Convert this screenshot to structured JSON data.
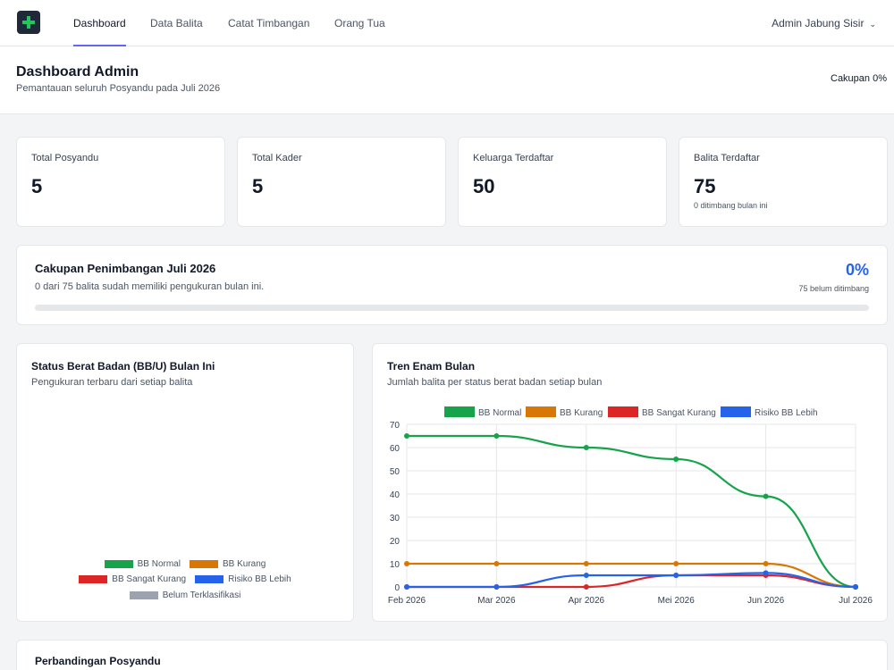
{
  "nav": {
    "items": [
      {
        "label": "Dashboard",
        "active": true
      },
      {
        "label": "Data Balita",
        "active": false
      },
      {
        "label": "Catat Timbangan",
        "active": false
      },
      {
        "label": "Orang Tua",
        "active": false
      }
    ],
    "user": "Admin Jabung Sisir",
    "logo_icon": "plus-icon"
  },
  "header": {
    "title": "Dashboard Admin",
    "subtitle": "Pemantauan seluruh Posyandu pada Juli 2026",
    "coverage": "Cakupan 0%"
  },
  "stats": [
    {
      "label": "Total Posyandu",
      "value": "5",
      "note": ""
    },
    {
      "label": "Total Kader",
      "value": "5",
      "note": ""
    },
    {
      "label": "Keluarga Terdaftar",
      "value": "50",
      "note": ""
    },
    {
      "label": "Balita Terdaftar",
      "value": "75",
      "note": "0 ditimbang bulan ini"
    }
  ],
  "coverage": {
    "title": "Cakupan Penimbangan Juli 2026",
    "description": "0 dari 75 balita sudah memiliki pengukuran bulan ini.",
    "percent": "0%",
    "progress": 0,
    "remaining": "75 belum ditimbang"
  },
  "status_panel": {
    "title": "Status Berat Badan (BB/U) Bulan Ini",
    "subtitle": "Pengukuran terbaru dari setiap balita",
    "legend": [
      {
        "name": "BB Normal",
        "color": "#16a34a"
      },
      {
        "name": "BB Kurang",
        "color": "#d97706"
      },
      {
        "name": "BB Sangat Kurang",
        "color": "#dc2626"
      },
      {
        "name": "Risiko BB Lebih",
        "color": "#2563eb"
      },
      {
        "name": "Belum Terklasifikasi",
        "color": "#9ca3af"
      }
    ]
  },
  "trend_panel": {
    "title": "Tren Enam Bulan",
    "subtitle": "Jumlah balita per status berat badan setiap bulan"
  },
  "comparison_panel": {
    "title": "Perbandingan Posyandu"
  },
  "chart_data": {
    "type": "line",
    "x": [
      "Feb 2026",
      "Mar 2026",
      "Apr 2026",
      "Mei 2026",
      "Jun 2026",
      "Jul 2026"
    ],
    "ylim": [
      0,
      70
    ],
    "yticks": [
      0,
      10,
      20,
      30,
      40,
      50,
      60,
      70
    ],
    "grid": true,
    "legend_position": "top",
    "series": [
      {
        "name": "BB Normal",
        "color": "#16a34a",
        "values": [
          65,
          65,
          60,
          55,
          39,
          0
        ]
      },
      {
        "name": "BB Kurang",
        "color": "#d97706",
        "values": [
          10,
          10,
          10,
          10,
          10,
          0
        ]
      },
      {
        "name": "BB Sangat Kurang",
        "color": "#dc2626",
        "values": [
          0,
          0,
          0,
          5,
          5,
          0
        ]
      },
      {
        "name": "Risiko BB Lebih",
        "color": "#2563eb",
        "values": [
          0,
          0,
          5,
          5,
          6,
          0
        ]
      }
    ]
  }
}
